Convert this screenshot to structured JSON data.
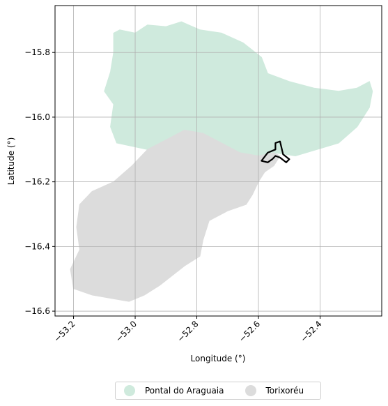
{
  "chart_data": {
    "type": "map",
    "xlabel": "Longitude (°)",
    "ylabel": "Latitude (°)",
    "xlim": [
      -53.26,
      -52.2
    ],
    "ylim": [
      -16.615,
      -15.655
    ],
    "x_ticks": [
      -53.2,
      -53.0,
      -52.8,
      -52.6,
      -52.4
    ],
    "x_tick_labels": [
      "−53.2",
      "−53.0",
      "−52.8",
      "−52.6",
      "−52.4"
    ],
    "y_ticks": [
      -15.8,
      -16.0,
      -16.2,
      -16.4,
      -16.6
    ],
    "y_tick_labels": [
      "−15.8",
      "−16.0",
      "−16.2",
      "−16.4",
      "−16.6"
    ],
    "grid": true,
    "legend_position": "bottom-center",
    "regions": [
      {
        "name": "Pontal do Araguaia",
        "color": "#cfeadd",
        "coords": [
          [
            -53.07,
            -15.74
          ],
          [
            -53.05,
            -15.73
          ],
          [
            -53.0,
            -15.74
          ],
          [
            -52.96,
            -15.715
          ],
          [
            -52.9,
            -15.72
          ],
          [
            -52.85,
            -15.705
          ],
          [
            -52.79,
            -15.73
          ],
          [
            -52.72,
            -15.74
          ],
          [
            -52.65,
            -15.77
          ],
          [
            -52.59,
            -15.815
          ],
          [
            -52.57,
            -15.865
          ],
          [
            -52.5,
            -15.89
          ],
          [
            -52.42,
            -15.91
          ],
          [
            -52.34,
            -15.92
          ],
          [
            -52.28,
            -15.91
          ],
          [
            -52.24,
            -15.89
          ],
          [
            -52.23,
            -15.92
          ],
          [
            -52.24,
            -15.97
          ],
          [
            -52.28,
            -16.03
          ],
          [
            -52.34,
            -16.08
          ],
          [
            -52.41,
            -16.1
          ],
          [
            -52.48,
            -16.12
          ],
          [
            -52.55,
            -16.11
          ],
          [
            -52.6,
            -16.12
          ],
          [
            -52.66,
            -16.11
          ],
          [
            -52.72,
            -16.08
          ],
          [
            -52.78,
            -16.05
          ],
          [
            -52.84,
            -16.04
          ],
          [
            -52.9,
            -16.07
          ],
          [
            -52.96,
            -16.1
          ],
          [
            -53.01,
            -16.09
          ],
          [
            -53.06,
            -16.08
          ],
          [
            -53.08,
            -16.03
          ],
          [
            -53.07,
            -15.96
          ],
          [
            -53.1,
            -15.92
          ],
          [
            -53.08,
            -15.86
          ],
          [
            -53.07,
            -15.8
          ]
        ]
      },
      {
        "name": "Torixoréu",
        "color": "#dcdcdc",
        "coords": [
          [
            -52.84,
            -16.04
          ],
          [
            -52.78,
            -16.05
          ],
          [
            -52.72,
            -16.08
          ],
          [
            -52.66,
            -16.11
          ],
          [
            -52.6,
            -16.12
          ],
          [
            -52.55,
            -16.11
          ],
          [
            -52.53,
            -16.12
          ],
          [
            -52.55,
            -16.15
          ],
          [
            -52.58,
            -16.17
          ],
          [
            -52.6,
            -16.2
          ],
          [
            -52.62,
            -16.24
          ],
          [
            -52.64,
            -16.27
          ],
          [
            -52.7,
            -16.29
          ],
          [
            -52.76,
            -16.32
          ],
          [
            -52.78,
            -16.38
          ],
          [
            -52.79,
            -16.43
          ],
          [
            -52.84,
            -16.46
          ],
          [
            -52.88,
            -16.49
          ],
          [
            -52.92,
            -16.52
          ],
          [
            -52.97,
            -16.55
          ],
          [
            -53.02,
            -16.57
          ],
          [
            -53.08,
            -16.56
          ],
          [
            -53.14,
            -16.55
          ],
          [
            -53.2,
            -16.53
          ],
          [
            -53.21,
            -16.47
          ],
          [
            -53.18,
            -16.41
          ],
          [
            -53.19,
            -16.34
          ],
          [
            -53.18,
            -16.27
          ],
          [
            -53.14,
            -16.23
          ],
          [
            -53.07,
            -16.2
          ],
          [
            -53.01,
            -16.15
          ],
          [
            -52.96,
            -16.1
          ],
          [
            -52.9,
            -16.07
          ]
        ]
      }
    ],
    "highlight": {
      "color": "#000000",
      "coords": [
        [
          -52.59,
          -16.135
        ],
        [
          -52.57,
          -16.11
        ],
        [
          -52.545,
          -16.1
        ],
        [
          -52.545,
          -16.08
        ],
        [
          -52.53,
          -16.075
        ],
        [
          -52.525,
          -16.095
        ],
        [
          -52.52,
          -16.115
        ],
        [
          -52.5,
          -16.13
        ],
        [
          -52.51,
          -16.14
        ],
        [
          -52.53,
          -16.125
        ],
        [
          -52.545,
          -16.12
        ],
        [
          -52.555,
          -16.13
        ],
        [
          -52.57,
          -16.14
        ]
      ]
    }
  }
}
